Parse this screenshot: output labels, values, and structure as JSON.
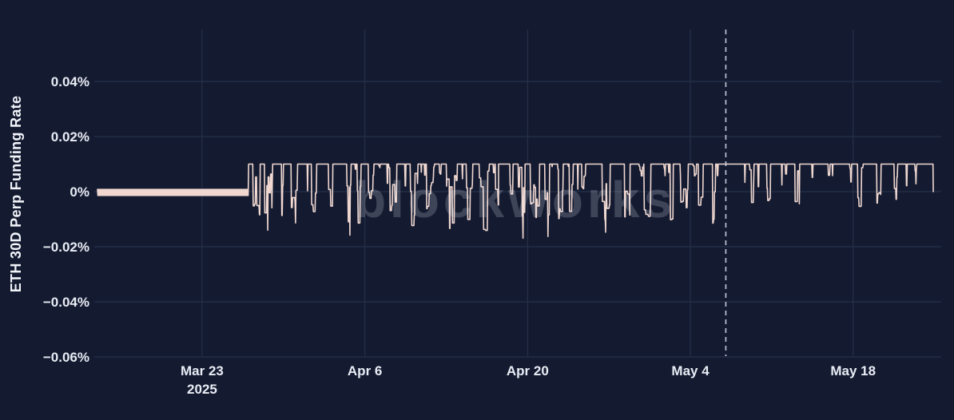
{
  "page": {
    "background": "#141b31"
  },
  "chart_data": {
    "type": "line",
    "title": "",
    "ylabel": "ETH 30D Perp Funding Rate",
    "watermark": {
      "text": "blockworks",
      "color": "#000000",
      "opacity": 0.2
    },
    "legend": {
      "show": false
    },
    "grid": {
      "show": true,
      "color": "#243049"
    },
    "x_axis": {
      "start_date": "2025-03-14",
      "end_date": "2025-05-25",
      "ticks": [
        {
          "label": "Mar 23",
          "sublabel": "2025",
          "day": 9
        },
        {
          "label": "Apr 6",
          "day": 23
        },
        {
          "label": "Apr 20",
          "day": 37
        },
        {
          "label": "May 4",
          "day": 51
        },
        {
          "label": "May 18",
          "day": 65
        }
      ]
    },
    "y_axis": {
      "unit": "%",
      "range": [
        -0.0623,
        0.0588
      ],
      "ticks": [
        {
          "label": "0.04%",
          "value": 0.04
        },
        {
          "label": "0.02%",
          "value": 0.02
        },
        {
          "label": "0%",
          "value": 0
        },
        {
          "label": "−0.02%",
          "value": -0.02
        },
        {
          "label": "−0.04%",
          "value": -0.04
        },
        {
          "label": "−0.06%",
          "value": -0.06
        }
      ]
    },
    "event_line": {
      "day": 54.05,
      "date": "2025-05-07",
      "style": "dashed",
      "color": "#d9dde9"
    },
    "series": {
      "name": "ETH 30D perp funding rate",
      "color": "#f0d8d1",
      "cap_value": 0.01,
      "seed": 1337,
      "samples_per_day": 28,
      "segments": [
        {
          "mode": "flat",
          "from": 0,
          "to": 13,
          "top": 0.0008,
          "bottom": -0.0014
        },
        {
          "mode": "burst",
          "from": 13,
          "to": 16,
          "up_run": [
            0.25,
            0.9
          ],
          "down_run": [
            0.2,
            0.8
          ],
          "dip": [
            -0.009,
            -0.002
          ],
          "deep": -0.0145,
          "deep_prob": 0.3
        },
        {
          "mode": "burst",
          "from": 16,
          "to": 20.5,
          "up_run": [
            0.4,
            1.3
          ],
          "down_run": [
            0.15,
            0.6
          ],
          "dip": [
            -0.008,
            -0.001
          ],
          "deep": -0.012,
          "deep_prob": 0.15
        },
        {
          "mode": "burst",
          "from": 20.5,
          "to": 24,
          "up_run": [
            0.35,
            1.1
          ],
          "down_run": [
            0.2,
            0.7
          ],
          "dip": [
            -0.012,
            -0.002
          ],
          "deep": -0.016,
          "deep_prob": 0.2
        },
        {
          "mode": "burst",
          "from": 24,
          "to": 31,
          "up_run": [
            0.3,
            1.2
          ],
          "down_run": [
            0.25,
            0.9
          ],
          "dip": [
            -0.014,
            -0.003
          ],
          "deep": -0.0195,
          "deep_prob": 0.25
        },
        {
          "mode": "burst",
          "from": 31,
          "to": 34.5,
          "up_run": [
            0.3,
            1.0
          ],
          "down_run": [
            0.25,
            1.0
          ],
          "dip": [
            -0.015,
            -0.004
          ],
          "deep": -0.019,
          "deep_prob": 0.3
        },
        {
          "mode": "burst",
          "from": 34.5,
          "to": 40,
          "up_run": [
            0.35,
            1.2
          ],
          "down_run": [
            0.2,
            0.8
          ],
          "dip": [
            -0.012,
            -0.002
          ],
          "deep": -0.017,
          "deep_prob": 0.2
        },
        {
          "mode": "burst",
          "from": 40,
          "to": 48,
          "up_run": [
            0.5,
            1.6
          ],
          "down_run": [
            0.15,
            0.7
          ],
          "dip": [
            -0.011,
            -0.002
          ],
          "deep": -0.015,
          "deep_prob": 0.18
        },
        {
          "mode": "burst",
          "from": 48,
          "to": 54.05,
          "up_run": [
            0.4,
            1.4
          ],
          "down_run": [
            0.2,
            0.7
          ],
          "dip": [
            -0.012,
            -0.002
          ],
          "deep": -0.014,
          "deep_prob": 0.15
        },
        {
          "mode": "burst",
          "from": 54.05,
          "to": 71.9,
          "up_run": [
            0.8,
            2.8
          ],
          "down_run": [
            0.06,
            0.45
          ],
          "dip": [
            -0.006,
            -0.001
          ],
          "deep": -0.011,
          "deep_prob": 0.1
        }
      ]
    }
  }
}
